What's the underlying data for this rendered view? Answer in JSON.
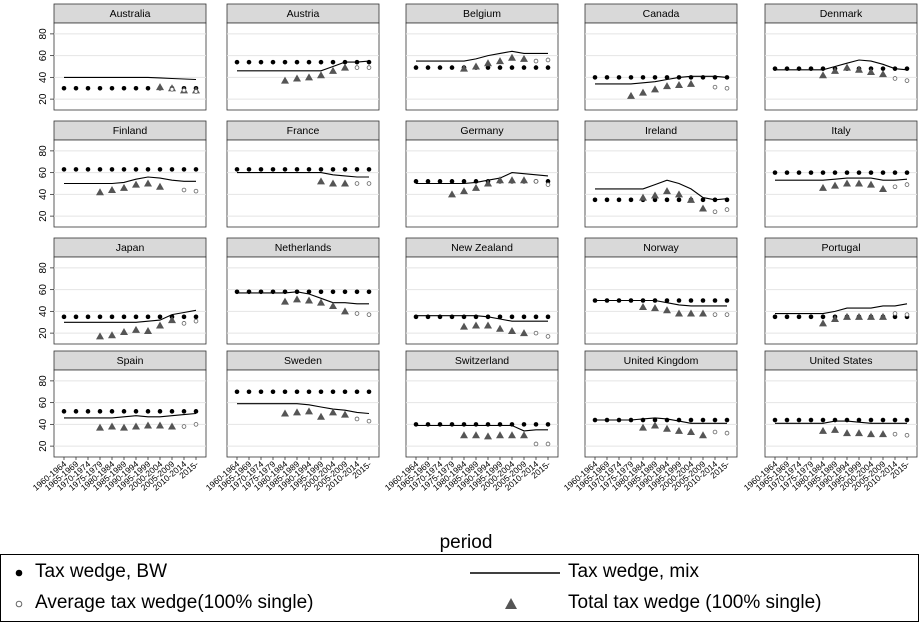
{
  "chart_data": {
    "type": "scatter",
    "xlabel": "period",
    "ylabel": "",
    "ylim": [
      10,
      90
    ],
    "yticks": [
      20,
      40,
      60,
      80
    ],
    "grid": true,
    "legend_placement": "bottom",
    "periods": [
      "1960-1964",
      "1965-1969",
      "1970-1974",
      "1975-1979",
      "1980-1984",
      "1985-1989",
      "1990-1994",
      "1995-1999",
      "2000-2004",
      "2005-2009",
      "2010-2014",
      "2015-"
    ],
    "legend": [
      {
        "key": "bw",
        "label": "Tax wedge, BW",
        "marker": "filled-circle"
      },
      {
        "key": "mix",
        "label": "Tax wedge, mix",
        "marker": "line"
      },
      {
        "key": "avg",
        "label": "Average tax wedge(100% single)",
        "marker": "hollow-circle"
      },
      {
        "key": "total",
        "label": "Total tax wedge (100% single)",
        "marker": "triangle"
      }
    ],
    "panels": [
      {
        "name": "Australia",
        "bw": [
          30,
          30,
          30,
          30,
          30,
          30,
          30,
          30,
          30,
          30,
          30,
          30
        ],
        "mix": [
          40,
          40,
          40,
          40,
          40,
          40,
          40,
          40,
          39.5,
          39,
          38.5,
          38
        ],
        "avg": [
          null,
          null,
          null,
          null,
          null,
          null,
          null,
          null,
          null,
          29,
          28,
          27
        ],
        "total": [
          null,
          null,
          null,
          null,
          null,
          null,
          null,
          null,
          31,
          30,
          28,
          28
        ]
      },
      {
        "name": "Austria",
        "bw": [
          54,
          54,
          54,
          54,
          54,
          54,
          54,
          54,
          54,
          54,
          54,
          54
        ],
        "mix": [
          46,
          46,
          46,
          46,
          46,
          46,
          46,
          46,
          50,
          54,
          54,
          55
        ],
        "avg": [
          null,
          null,
          null,
          null,
          null,
          null,
          null,
          null,
          null,
          null,
          49,
          49
        ],
        "total": [
          null,
          null,
          null,
          null,
          37,
          39,
          40,
          42,
          46,
          49,
          null,
          null
        ]
      },
      {
        "name": "Belgium",
        "bw": [
          49,
          49,
          49,
          49,
          49,
          49,
          49,
          49,
          49,
          49,
          49,
          49
        ],
        "mix": [
          55,
          55,
          55,
          55,
          55,
          57,
          60,
          62,
          64,
          62,
          62,
          62
        ],
        "avg": [
          null,
          null,
          null,
          null,
          null,
          null,
          null,
          null,
          null,
          null,
          55,
          56
        ],
        "total": [
          null,
          null,
          null,
          null,
          48,
          50,
          53,
          55,
          58,
          57,
          null,
          null
        ]
      },
      {
        "name": "Canada",
        "bw": [
          40,
          40,
          40,
          40,
          40,
          40,
          40,
          40,
          40,
          40,
          40,
          40
        ],
        "mix": [
          34,
          34,
          34,
          34,
          35,
          36,
          38,
          40,
          41,
          41,
          41,
          40
        ],
        "avg": [
          null,
          null,
          null,
          null,
          null,
          null,
          null,
          null,
          null,
          null,
          31,
          30
        ],
        "total": [
          null,
          null,
          null,
          23,
          26,
          29,
          32,
          33,
          34,
          null,
          null,
          null
        ]
      },
      {
        "name": "Denmark",
        "bw": [
          48,
          48,
          48,
          48,
          48,
          48,
          48,
          48,
          48,
          48,
          48,
          48
        ],
        "mix": [
          47,
          47,
          47,
          47,
          47,
          50,
          53,
          56,
          55,
          52,
          48,
          47
        ],
        "avg": [
          null,
          null,
          null,
          null,
          null,
          null,
          null,
          null,
          null,
          null,
          39,
          37
        ],
        "total": [
          null,
          null,
          null,
          null,
          42,
          46,
          49,
          47,
          45,
          43,
          null,
          null
        ]
      },
      {
        "name": "Finland",
        "bw": [
          63,
          63,
          63,
          63,
          63,
          63,
          63,
          63,
          63,
          63,
          63,
          63
        ],
        "mix": [
          50,
          50,
          50,
          50,
          50,
          51,
          54,
          56,
          55,
          53,
          52,
          52
        ],
        "avg": [
          null,
          null,
          null,
          null,
          null,
          null,
          null,
          null,
          null,
          null,
          44,
          43
        ],
        "total": [
          null,
          null,
          null,
          42,
          44,
          46,
          49,
          50,
          47,
          null,
          null,
          null
        ]
      },
      {
        "name": "France",
        "bw": [
          63,
          63,
          63,
          63,
          63,
          63,
          63,
          63,
          63,
          63,
          63,
          63
        ],
        "mix": [
          60,
          60,
          60,
          60,
          60,
          60,
          60,
          60,
          58,
          57,
          56,
          56
        ],
        "avg": [
          null,
          null,
          null,
          null,
          null,
          null,
          null,
          null,
          null,
          null,
          50,
          50
        ],
        "total": [
          null,
          null,
          null,
          null,
          null,
          null,
          null,
          52,
          50,
          50,
          null,
          null
        ]
      },
      {
        "name": "Germany",
        "bw": [
          52,
          52,
          52,
          52,
          52,
          52,
          52,
          52,
          52,
          52,
          52,
          52
        ],
        "mix": [
          50,
          50,
          50,
          50,
          50,
          51,
          53,
          55,
          60,
          59,
          58,
          57
        ],
        "avg": [
          null,
          null,
          null,
          null,
          null,
          null,
          null,
          null,
          null,
          null,
          52,
          49
        ],
        "total": [
          null,
          null,
          null,
          40,
          43,
          46,
          50,
          53,
          53,
          53,
          null,
          null
        ]
      },
      {
        "name": "Ireland",
        "bw": [
          35,
          35,
          35,
          35,
          35,
          35,
          35,
          35,
          35,
          35,
          35,
          35
        ],
        "mix": [
          45,
          45,
          45,
          45,
          45,
          49,
          53,
          50,
          45,
          37,
          35,
          36
        ],
        "avg": [
          null,
          null,
          null,
          null,
          null,
          null,
          null,
          null,
          null,
          null,
          24,
          26
        ],
        "total": [
          null,
          null,
          null,
          null,
          37,
          39,
          43,
          40,
          35,
          27,
          null,
          null
        ]
      },
      {
        "name": "Italy",
        "bw": [
          60,
          60,
          60,
          60,
          60,
          60,
          60,
          60,
          60,
          60,
          60,
          60
        ],
        "mix": [
          53,
          53,
          53,
          53,
          53,
          54,
          55,
          55,
          55,
          53,
          53,
          54
        ],
        "avg": [
          null,
          null,
          null,
          null,
          null,
          null,
          null,
          null,
          null,
          null,
          47,
          49
        ],
        "total": [
          null,
          null,
          null,
          null,
          46,
          48,
          50,
          50,
          49,
          45,
          null,
          null
        ]
      },
      {
        "name": "Japan",
        "bw": [
          35,
          35,
          35,
          35,
          35,
          35,
          35,
          35,
          35,
          35,
          35,
          35
        ],
        "mix": [
          30,
          30,
          30,
          30,
          30,
          30,
          30,
          31,
          32,
          37,
          39,
          41
        ],
        "avg": [
          null,
          null,
          null,
          null,
          null,
          null,
          null,
          null,
          null,
          null,
          29,
          31
        ],
        "total": [
          null,
          null,
          null,
          17,
          18,
          21,
          23,
          22,
          27,
          32,
          null,
          null
        ]
      },
      {
        "name": "Netherlands",
        "bw": [
          58,
          58,
          58,
          58,
          58,
          58,
          58,
          58,
          58,
          58,
          58,
          58
        ],
        "mix": [
          57,
          57,
          57,
          57,
          57,
          58,
          56,
          52,
          48,
          48,
          47,
          47
        ],
        "avg": [
          null,
          null,
          null,
          null,
          null,
          null,
          null,
          null,
          null,
          null,
          38,
          37
        ],
        "total": [
          null,
          null,
          null,
          null,
          49,
          51,
          50,
          48,
          45,
          40,
          null,
          null
        ]
      },
      {
        "name": "New Zealand",
        "bw": [
          35,
          35,
          35,
          35,
          35,
          35,
          35,
          35,
          35,
          35,
          35,
          35
        ],
        "mix": [
          36,
          36,
          36,
          36,
          36,
          36,
          35,
          33,
          31,
          31,
          31,
          31
        ],
        "avg": [
          null,
          null,
          null,
          null,
          null,
          null,
          null,
          null,
          null,
          null,
          20,
          17
        ],
        "total": [
          null,
          null,
          null,
          null,
          26,
          27,
          27,
          24,
          22,
          20,
          null,
          null
        ]
      },
      {
        "name": "Norway",
        "bw": [
          50,
          50,
          50,
          50,
          50,
          50,
          50,
          50,
          50,
          50,
          50,
          50
        ],
        "mix": [
          50,
          50,
          50,
          50,
          50,
          50,
          48,
          46,
          45,
          45,
          45,
          45
        ],
        "avg": [
          null,
          null,
          null,
          null,
          null,
          null,
          null,
          null,
          null,
          null,
          37,
          37
        ],
        "total": [
          null,
          null,
          null,
          null,
          44,
          43,
          41,
          38,
          38,
          38,
          null,
          null
        ]
      },
      {
        "name": "Portugal",
        "bw": [
          35,
          35,
          35,
          35,
          35,
          35,
          35,
          35,
          35,
          35,
          35,
          35
        ],
        "mix": [
          38,
          38,
          38,
          38,
          38,
          40,
          43,
          43,
          43,
          45,
          45,
          47
        ],
        "avg": [
          null,
          null,
          null,
          null,
          null,
          null,
          null,
          null,
          null,
          null,
          38,
          37
        ],
        "total": [
          null,
          null,
          null,
          null,
          29,
          33,
          35,
          35,
          35,
          35,
          null,
          null
        ]
      },
      {
        "name": "Spain",
        "bw": [
          52,
          52,
          52,
          52,
          52,
          52,
          52,
          52,
          52,
          52,
          52,
          52
        ],
        "mix": [
          46,
          46,
          46,
          46,
          46,
          47,
          48,
          47,
          47,
          48,
          49,
          50
        ],
        "avg": [
          null,
          null,
          null,
          null,
          null,
          null,
          null,
          null,
          null,
          null,
          38,
          40
        ],
        "total": [
          null,
          null,
          null,
          37,
          38,
          37,
          38,
          39,
          39,
          38,
          null,
          null
        ]
      },
      {
        "name": "Sweden",
        "bw": [
          70,
          70,
          70,
          70,
          70,
          70,
          70,
          70,
          70,
          70,
          70,
          70
        ],
        "mix": [
          59,
          59,
          59,
          59,
          59,
          59,
          58,
          56,
          54,
          53,
          51,
          50
        ],
        "avg": [
          null,
          null,
          null,
          null,
          null,
          null,
          null,
          null,
          null,
          null,
          45,
          43
        ],
        "total": [
          null,
          null,
          null,
          null,
          50,
          51,
          52,
          47,
          51,
          49,
          null,
          null
        ]
      },
      {
        "name": "Switzerland",
        "bw": [
          40,
          40,
          40,
          40,
          40,
          40,
          40,
          40,
          40,
          40,
          40,
          40
        ],
        "mix": [
          39,
          39,
          39,
          39,
          39,
          39,
          39,
          39,
          39,
          34,
          35,
          35
        ],
        "avg": [
          null,
          null,
          null,
          null,
          null,
          null,
          null,
          null,
          null,
          null,
          22,
          22
        ],
        "total": [
          null,
          null,
          null,
          null,
          30,
          30,
          29,
          30,
          30,
          30,
          null,
          null
        ]
      },
      {
        "name": "United Kingdom",
        "bw": [
          44,
          44,
          44,
          44,
          44,
          44,
          44,
          44,
          44,
          44,
          44,
          44
        ],
        "mix": [
          44,
          44,
          44,
          44,
          45,
          46,
          45,
          43,
          41,
          41,
          41,
          41
        ],
        "avg": [
          null,
          null,
          null,
          null,
          null,
          null,
          null,
          null,
          null,
          null,
          33,
          32
        ],
        "total": [
          null,
          null,
          null,
          null,
          37,
          39,
          36,
          34,
          33,
          30,
          null,
          null
        ]
      },
      {
        "name": "United States",
        "bw": [
          44,
          44,
          44,
          44,
          44,
          44,
          44,
          44,
          44,
          44,
          44,
          44
        ],
        "mix": [
          41,
          41,
          41,
          41,
          41,
          43,
          43,
          42,
          41,
          41,
          41,
          41
        ],
        "avg": [
          null,
          null,
          null,
          null,
          null,
          null,
          null,
          null,
          null,
          null,
          31,
          30
        ],
        "total": [
          null,
          null,
          null,
          null,
          34,
          35,
          32,
          32,
          31,
          31,
          null,
          null
        ]
      }
    ]
  }
}
